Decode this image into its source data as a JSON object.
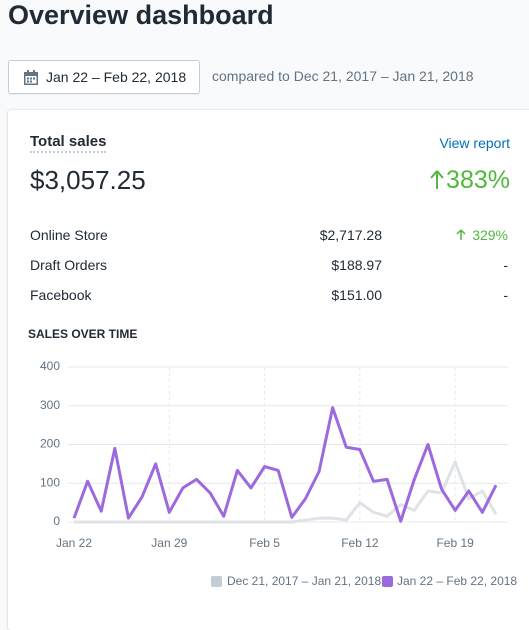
{
  "header": {
    "title": "Overview dashboard"
  },
  "date_range": "Jan 22 – Feb 22, 2018",
  "comparison": "compared to Dec 21, 2017 – Jan 21, 2018",
  "card": {
    "title": "Total sales",
    "link": "View report",
    "total": "$3,057.25",
    "change": "383%",
    "rows": [
      {
        "label": "Online Store",
        "value": "$2,717.28",
        "change": "329%"
      },
      {
        "label": "Draft Orders",
        "value": "$188.97",
        "change": "-"
      },
      {
        "label": "Facebook",
        "value": "$151.00",
        "change": "-"
      }
    ]
  },
  "chart_data": {
    "type": "line",
    "title": "SALES OVER TIME",
    "categories": [
      "Jan 22",
      null,
      null,
      null,
      null,
      null,
      null,
      "Jan 29",
      null,
      null,
      null,
      null,
      null,
      null,
      "Feb 5",
      null,
      null,
      null,
      null,
      null,
      null,
      "Feb 12",
      null,
      null,
      null,
      null,
      null,
      null,
      "Feb 19",
      null,
      null,
      null
    ],
    "series": [
      {
        "name": "Dec 21, 2017 – Jan 21, 2018",
        "color": "#dfe3e8",
        "values": [
          0,
          0,
          0,
          0,
          0,
          0,
          0,
          0,
          0,
          0,
          0,
          0,
          0,
          0,
          0,
          0,
          0,
          5,
          10,
          10,
          5,
          50,
          25,
          15,
          45,
          30,
          80,
          75,
          155,
          60,
          80,
          20
        ]
      },
      {
        "name": "Jan 22 – Feb 22, 2018",
        "color": "#9c6ade",
        "values": [
          10,
          105,
          28,
          190,
          10,
          65,
          150,
          25,
          88,
          110,
          75,
          15,
          133,
          88,
          143,
          133,
          12,
          60,
          130,
          295,
          193,
          187,
          105,
          110,
          2,
          110,
          200,
          85,
          30,
          80,
          25,
          95
        ]
      }
    ],
    "ylim": [
      0,
      400
    ],
    "yticks": [
      0,
      100,
      200,
      300,
      400
    ],
    "grid": true
  }
}
